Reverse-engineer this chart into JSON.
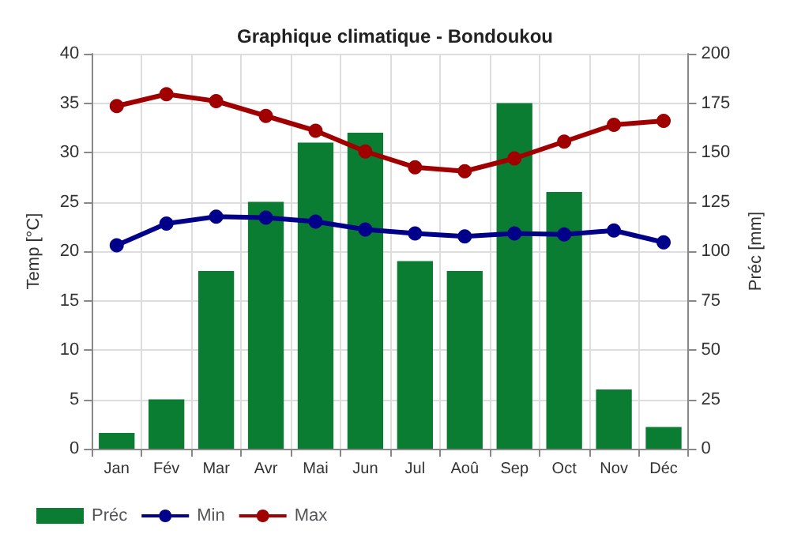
{
  "chart_data": {
    "type": "bar",
    "title": "Graphique climatique - Bondoukou",
    "ylabel": "Temp [°C]",
    "y2label": "Préc [mm]",
    "categories": [
      "Jan",
      "Fév",
      "Mar",
      "Avr",
      "Mai",
      "Jun",
      "Jul",
      "Aoû",
      "Sep",
      "Oct",
      "Nov",
      "Déc"
    ],
    "series": [
      {
        "name": "Préc",
        "axis": "y2",
        "color": "#0a7d32",
        "values": [
          8,
          25,
          90,
          125,
          155,
          160,
          95,
          90,
          175,
          130,
          30,
          11
        ]
      },
      {
        "name": "Min",
        "type": "line",
        "color": "#00008b",
        "values": [
          20.6,
          22.8,
          23.5,
          23.4,
          23.0,
          22.2,
          21.8,
          21.5,
          21.8,
          21.7,
          22.1,
          20.9
        ]
      },
      {
        "name": "Max",
        "type": "line",
        "color": "#a00000",
        "values": [
          34.7,
          35.9,
          35.2,
          33.7,
          32.2,
          30.1,
          28.5,
          28.1,
          29.4,
          31.1,
          32.8,
          33.2
        ]
      }
    ],
    "ylim": [
      0,
      40
    ],
    "yticks": [
      0,
      5,
      10,
      15,
      20,
      25,
      30,
      35,
      40
    ],
    "y2lim": [
      0,
      200
    ],
    "y2ticks": [
      0,
      25,
      50,
      75,
      100,
      125,
      150,
      175,
      200
    ],
    "grid": true,
    "legend": "bottom",
    "marker": "circle",
    "line_style": "solid"
  }
}
